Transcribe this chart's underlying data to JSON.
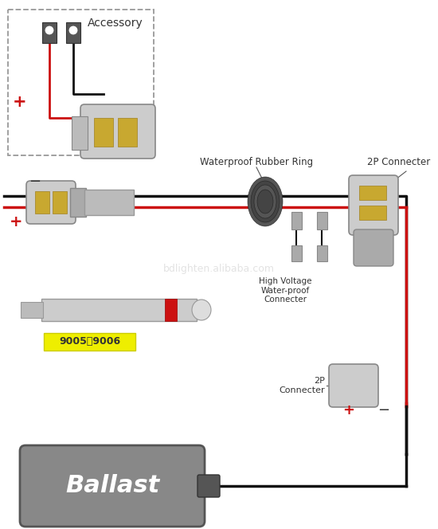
{
  "bg_color": "#ffffff",
  "labels": {
    "accessory": "Accessory",
    "waterproof_rubber_ring": "Waterproof Rubber Ring",
    "high_voltage_waterproof_connecter": "High Voltage\nWater-proof\nConnecter",
    "2p_connecter_top": "2P Connecter",
    "2p_connecter_bottom": "2P\nConnecter",
    "ballast": "Ballast",
    "bulb_model": "9005、9006",
    "plus": "+",
    "minus": "−",
    "watermark": "bdlighten.alibaba.com"
  },
  "colors": {
    "red_wire": "#cc1111",
    "black_wire": "#111111",
    "connector_light": "#cccccc",
    "connector_mid": "#aaaaaa",
    "connector_dark": "#888888",
    "connector_gold": "#c8a830",
    "connector_gold_edge": "#a08020",
    "ballast_body": "#888888",
    "ballast_edge": "#555555",
    "ballast_text": "#ffffff",
    "dashed_box": "#999999",
    "bulb_label_bg": "#eeee00",
    "bulb_label_edge": "#cccc00",
    "plus_color": "#cc1111",
    "minus_color": "#333333",
    "watermark_color": "#cccccc",
    "grommet": "#444444",
    "grommet_edge": "#222222",
    "label_line": "#555555",
    "bulb_body": "#cccccc",
    "bulb_edge": "#999999",
    "bulb_red": "#cc1111",
    "shroud": "#bbbbbb",
    "shroud_edge": "#888888"
  }
}
